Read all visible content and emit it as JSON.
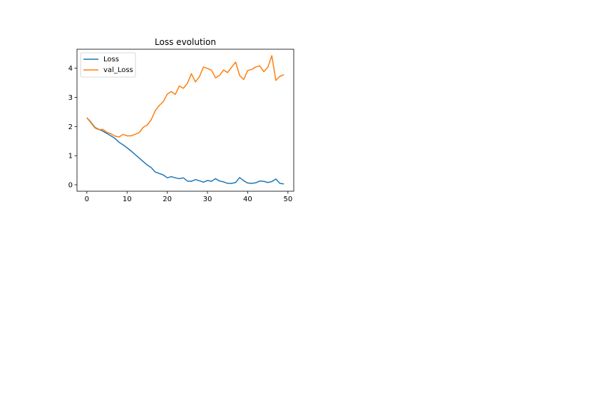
{
  "chart_data": {
    "type": "line",
    "title": "Loss evolution",
    "xlabel": "",
    "ylabel": "",
    "xlim": [
      -2.45,
      51.45
    ],
    "ylim": [
      -0.22,
      4.65
    ],
    "xticks": [
      0,
      10,
      20,
      30,
      40,
      50
    ],
    "yticks": [
      0,
      1,
      2,
      3,
      4
    ],
    "grid": false,
    "legend_position": "upper-left",
    "x": [
      0,
      1,
      2,
      3,
      4,
      5,
      6,
      7,
      8,
      9,
      10,
      11,
      12,
      13,
      14,
      15,
      16,
      17,
      18,
      19,
      20,
      21,
      22,
      23,
      24,
      25,
      26,
      27,
      28,
      29,
      30,
      31,
      32,
      33,
      34,
      35,
      36,
      37,
      38,
      39,
      40,
      41,
      42,
      43,
      44,
      45,
      46,
      47,
      48,
      49
    ],
    "series": [
      {
        "name": "Loss",
        "color": "#1f77b4",
        "values": [
          2.3,
          2.15,
          1.97,
          1.9,
          1.84,
          1.76,
          1.68,
          1.59,
          1.46,
          1.37,
          1.27,
          1.16,
          1.04,
          0.92,
          0.8,
          0.68,
          0.59,
          0.44,
          0.39,
          0.34,
          0.24,
          0.28,
          0.24,
          0.21,
          0.24,
          0.13,
          0.12,
          0.18,
          0.14,
          0.09,
          0.15,
          0.12,
          0.21,
          0.13,
          0.1,
          0.05,
          0.05,
          0.08,
          0.25,
          0.14,
          0.06,
          0.05,
          0.07,
          0.13,
          0.12,
          0.08,
          0.11,
          0.2,
          0.05,
          0.03
        ]
      },
      {
        "name": "val_Loss",
        "color": "#ff7f0e",
        "values": [
          2.3,
          2.13,
          1.95,
          1.89,
          1.9,
          1.8,
          1.75,
          1.67,
          1.64,
          1.73,
          1.68,
          1.68,
          1.73,
          1.79,
          1.97,
          2.05,
          2.23,
          2.54,
          2.72,
          2.85,
          3.11,
          3.2,
          3.1,
          3.39,
          3.31,
          3.48,
          3.81,
          3.53,
          3.71,
          4.04,
          3.99,
          3.93,
          3.67,
          3.75,
          3.94,
          3.85,
          4.03,
          4.21,
          3.75,
          3.61,
          3.92,
          3.96,
          4.04,
          4.08,
          3.88,
          4.03,
          4.43,
          3.58,
          3.72,
          3.78
        ]
      }
    ]
  }
}
